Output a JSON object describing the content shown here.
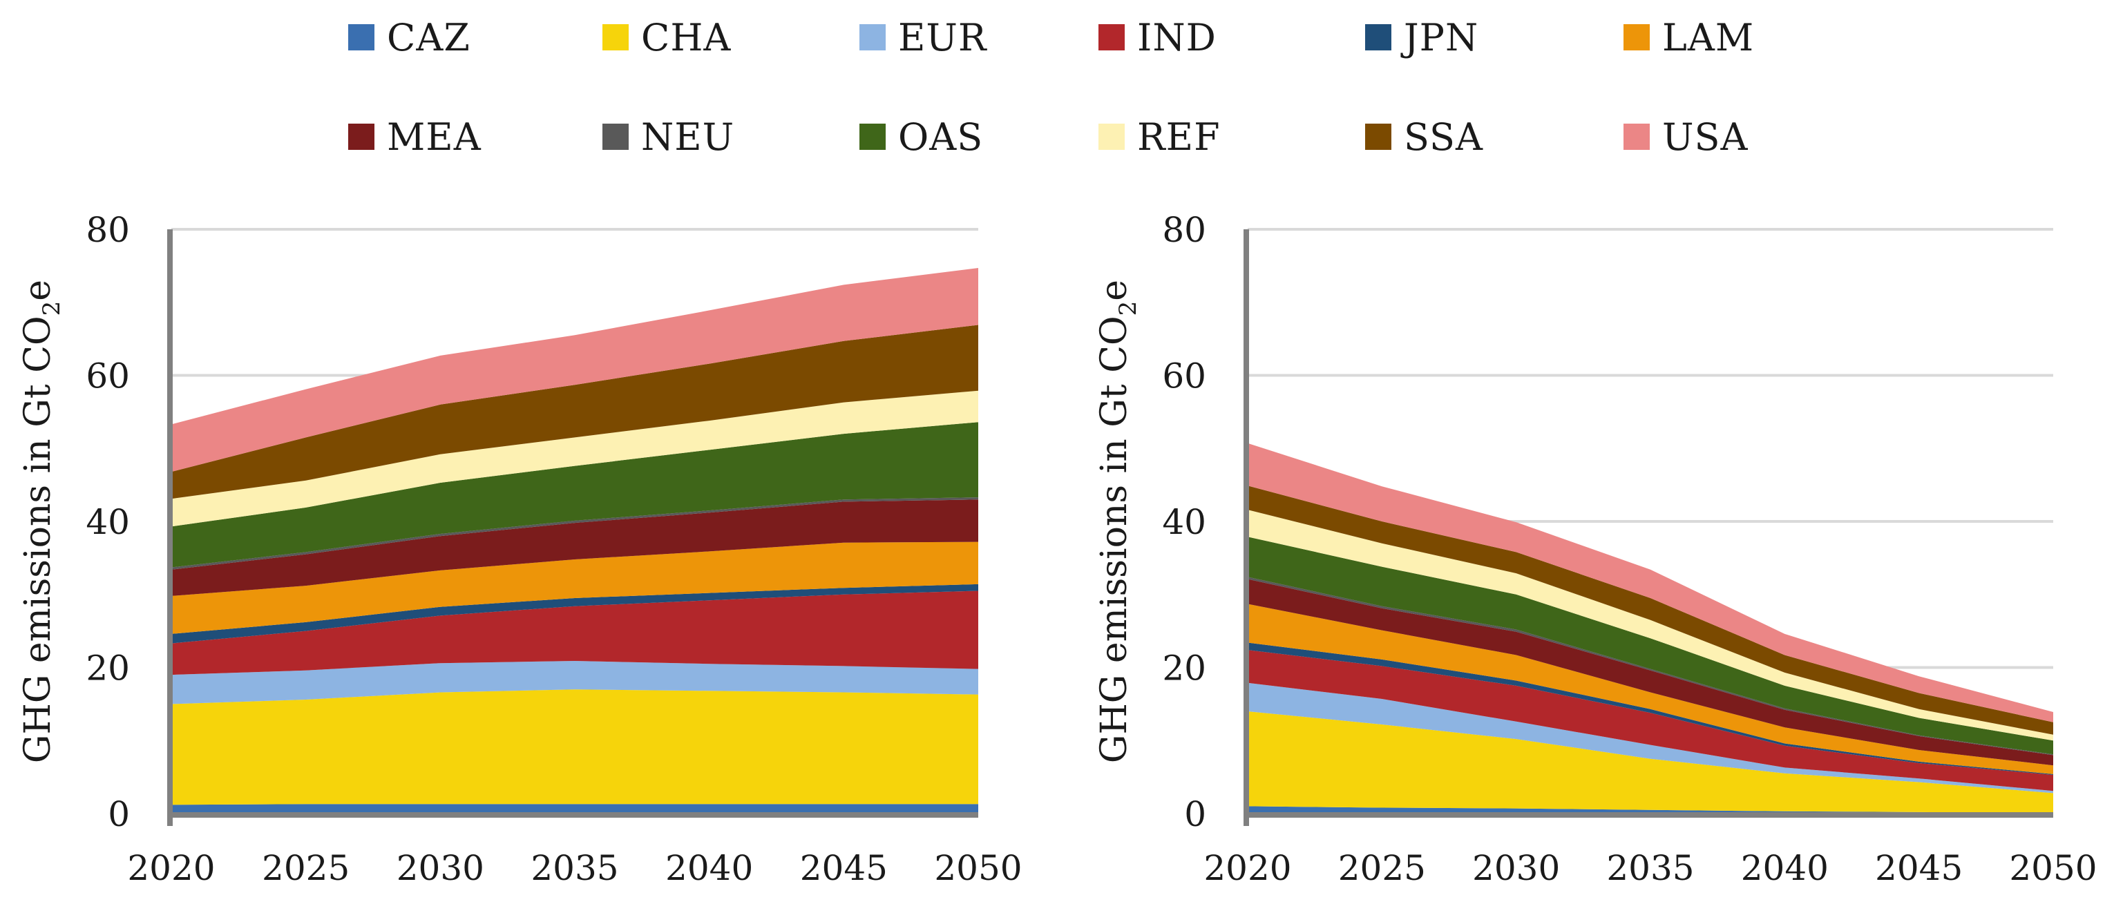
{
  "chart_data": [
    {
      "type": "area",
      "stacked": true,
      "title": "",
      "xlabel": "",
      "ylabel": "GHG emissions in Gt CO",
      "ylabel_subscript": "2",
      "ylabel_suffix": "e",
      "xlim": [
        2020,
        2050
      ],
      "ylim": [
        0,
        80
      ],
      "yticks": [
        0,
        20,
        40,
        60,
        80
      ],
      "grid": "horizontal",
      "x": [
        2020,
        2025,
        2030,
        2035,
        2040,
        2045,
        2050
      ],
      "series": [
        {
          "name": "CAZ",
          "values": [
            1.2,
            1.3,
            1.3,
            1.3,
            1.3,
            1.3,
            1.3
          ]
        },
        {
          "name": "CHA",
          "values": [
            13.8,
            14.3,
            15.3,
            15.7,
            15.5,
            15.3,
            15.0
          ]
        },
        {
          "name": "EUR",
          "values": [
            4.0,
            4.0,
            4.0,
            3.9,
            3.7,
            3.6,
            3.5
          ]
        },
        {
          "name": "IND",
          "values": [
            4.3,
            5.4,
            6.5,
            7.5,
            8.7,
            9.8,
            10.7
          ]
        },
        {
          "name": "JPN",
          "values": [
            1.3,
            1.2,
            1.2,
            1.1,
            1.0,
            0.9,
            0.9
          ]
        },
        {
          "name": "LAM",
          "values": [
            5.2,
            5.0,
            5.0,
            5.3,
            5.7,
            6.2,
            5.8
          ]
        },
        {
          "name": "MEA",
          "values": [
            3.6,
            4.3,
            4.7,
            5.0,
            5.3,
            5.6,
            5.8
          ]
        },
        {
          "name": "NEU",
          "values": [
            0.3,
            0.3,
            0.3,
            0.3,
            0.3,
            0.3,
            0.3
          ]
        },
        {
          "name": "OAS",
          "values": [
            5.6,
            6.1,
            7.0,
            7.5,
            8.3,
            9.0,
            10.3
          ]
        },
        {
          "name": "REF",
          "values": [
            3.8,
            3.7,
            3.9,
            3.9,
            4.0,
            4.3,
            4.3
          ]
        },
        {
          "name": "SSA",
          "values": [
            3.7,
            5.9,
            6.8,
            7.2,
            7.8,
            8.4,
            9.0
          ]
        },
        {
          "name": "USA",
          "values": [
            6.5,
            6.6,
            6.7,
            6.8,
            7.3,
            7.7,
            7.8
          ]
        }
      ]
    },
    {
      "type": "area",
      "stacked": true,
      "title": "",
      "xlabel": "",
      "ylabel": "GHG emissions in Gt CO",
      "ylabel_subscript": "2",
      "ylabel_suffix": "e",
      "xlim": [
        2020,
        2050
      ],
      "ylim": [
        0,
        80
      ],
      "yticks": [
        0,
        20,
        40,
        60,
        80
      ],
      "grid": "horizontal",
      "x": [
        2020,
        2025,
        2030,
        2035,
        2040,
        2045,
        2050
      ],
      "series": [
        {
          "name": "CAZ",
          "values": [
            1.0,
            0.8,
            0.7,
            0.5,
            0.3,
            0.2,
            0.1
          ]
        },
        {
          "name": "CHA",
          "values": [
            13.0,
            11.4,
            9.5,
            7.0,
            5.2,
            4.1,
            2.7
          ]
        },
        {
          "name": "EUR",
          "values": [
            3.9,
            3.5,
            2.4,
            1.9,
            0.8,
            0.5,
            0.3
          ]
        },
        {
          "name": "IND",
          "values": [
            4.5,
            4.5,
            4.9,
            4.4,
            3.0,
            2.1,
            2.2
          ]
        },
        {
          "name": "JPN",
          "values": [
            1.0,
            0.9,
            0.7,
            0.5,
            0.3,
            0.2,
            0.1
          ]
        },
        {
          "name": "LAM",
          "values": [
            5.3,
            4.0,
            3.5,
            2.3,
            2.2,
            1.6,
            1.2
          ]
        },
        {
          "name": "MEA",
          "values": [
            3.4,
            3.0,
            3.2,
            3.0,
            2.4,
            1.9,
            1.4
          ]
        },
        {
          "name": "NEU",
          "values": [
            0.3,
            0.3,
            0.3,
            0.2,
            0.2,
            0.1,
            0.1
          ]
        },
        {
          "name": "OAS",
          "values": [
            5.5,
            5.4,
            4.8,
            4.2,
            3.1,
            2.4,
            1.9
          ]
        },
        {
          "name": "REF",
          "values": [
            3.7,
            3.2,
            2.9,
            2.5,
            1.8,
            1.2,
            0.8
          ]
        },
        {
          "name": "SSA",
          "values": [
            3.3,
            3.0,
            2.9,
            3.0,
            2.4,
            2.2,
            1.7
          ]
        },
        {
          "name": "USA",
          "values": [
            5.8,
            4.8,
            4.1,
            3.9,
            2.9,
            2.3,
            1.4
          ]
        }
      ]
    }
  ],
  "legend": {
    "placement": "top",
    "items": [
      {
        "name": "CAZ",
        "color": "#3a6fb0"
      },
      {
        "name": "CHA",
        "color": "#f6d40b"
      },
      {
        "name": "EUR",
        "color": "#8db4e2"
      },
      {
        "name": "IND",
        "color": "#b2272b"
      },
      {
        "name": "JPN",
        "color": "#1f4e79"
      },
      {
        "name": "LAM",
        "color": "#ed9509"
      },
      {
        "name": "MEA",
        "color": "#7b1c1c"
      },
      {
        "name": "NEU",
        "color": "#595959"
      },
      {
        "name": "OAS",
        "color": "#3f6619"
      },
      {
        "name": "REF",
        "color": "#fdf1b3"
      },
      {
        "name": "SSA",
        "color": "#7b4a00"
      },
      {
        "name": "USA",
        "color": "#eb8686"
      }
    ]
  },
  "colors": {
    "grid": "#d9d9d9",
    "axis": "#808080"
  }
}
